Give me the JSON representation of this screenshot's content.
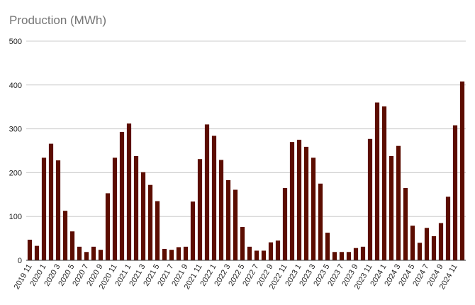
{
  "chart_data": {
    "type": "bar",
    "title": "Production (MWh)",
    "xlabel": "",
    "ylabel": "",
    "ylim": [
      0,
      500
    ],
    "yticks": [
      0,
      100,
      200,
      300,
      400,
      500
    ],
    "grid": true,
    "bar_color": "#5c0d01",
    "categories": [
      "2019 11",
      "2019 12",
      "2020 1",
      "2020 2",
      "2020 3",
      "2020 4",
      "2020 5",
      "2020 6",
      "2020 7",
      "2020 8",
      "2020 9",
      "2020 10",
      "2020 11",
      "2020 12",
      "2021 1",
      "2021 2",
      "2021 3",
      "2021 4",
      "2021 5",
      "2021 6",
      "2021 7",
      "2021 8",
      "2021 9",
      "2021 10",
      "2021 11",
      "2021 12",
      "2022 1",
      "2022 2",
      "2022 3",
      "2022 4",
      "2022 5",
      "2022 6",
      "2022 7",
      "2022 8",
      "2022 9",
      "2022 10",
      "2022 11",
      "2022 12",
      "2023 1",
      "2023 2",
      "2023 3",
      "2023 4",
      "2023 5",
      "2023 6",
      "2023 7",
      "2023 8",
      "2023 9",
      "2023 10",
      "2023 11",
      "2023 12",
      "2024 1",
      "2024 2",
      "2024 3",
      "2024 4",
      "2024 5",
      "2024 6",
      "2024 7",
      "2024 8",
      "2024 9",
      "2024 10",
      "2024 11",
      "2024 12"
    ],
    "visible_xtick_labels": [
      "2019 11",
      "2020 1",
      "2020 3",
      "2020 5",
      "2020 7",
      "2020 9",
      "2020 11",
      "2021 1",
      "2021 3",
      "2021 5",
      "2021 7",
      "2021 9",
      "2021 11",
      "2022 1",
      "2022 3",
      "2022 5",
      "2022 7",
      "2022 9",
      "2022 11",
      "2023 1",
      "2023 3",
      "2023 5",
      "2023 7",
      "2023 9",
      "2023 11",
      "2024 1",
      "2024 3",
      "2024 5",
      "2024 7",
      "2024 9",
      "2024 11"
    ],
    "values": [
      47,
      33,
      234,
      266,
      228,
      113,
      66,
      31,
      19,
      31,
      24,
      153,
      234,
      293,
      312,
      238,
      201,
      172,
      135,
      26,
      24,
      30,
      31,
      134,
      231,
      310,
      284,
      229,
      183,
      161,
      76,
      31,
      22,
      22,
      41,
      45,
      165,
      270,
      275,
      259,
      234,
      175,
      63,
      19,
      19,
      19,
      28,
      31,
      277,
      360,
      351,
      238,
      261,
      165,
      79,
      40,
      74,
      55,
      85,
      145,
      308,
      408
    ]
  }
}
